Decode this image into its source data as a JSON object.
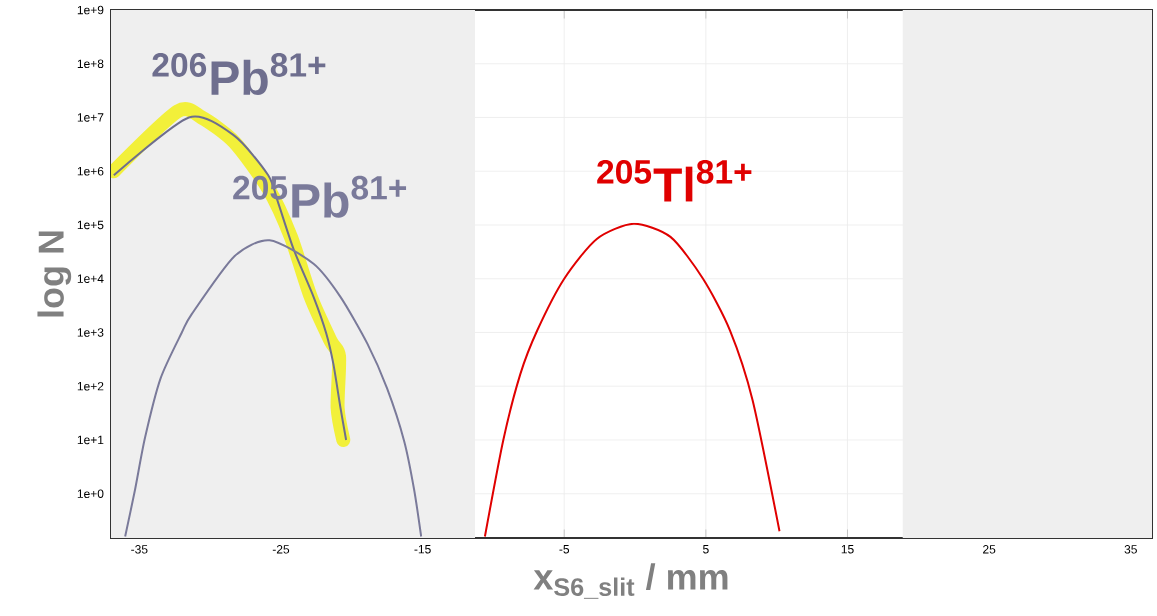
{
  "chart_data": {
    "type": "line",
    "xlabel": "x$_{S6_slit}$ / mm",
    "ylabel": "log N",
    "log": "y",
    "grid": true,
    "xlim": [
      -37,
      36.5
    ],
    "xticks": [
      -35,
      -25,
      -15,
      -5,
      5,
      15,
      25,
      35
    ],
    "ylim": [
      0.15,
      1000000000
    ],
    "yticks": [
      {
        "value": 1,
        "label": "1e+0"
      },
      {
        "value": 10,
        "label": "1e+1"
      },
      {
        "value": 100,
        "label": "1e+2"
      },
      {
        "value": 1000,
        "label": "1e+3"
      },
      {
        "value": 10000,
        "label": "1e+4"
      },
      {
        "value": 100000,
        "label": "1e+5"
      },
      {
        "value": 1000000,
        "label": "1e+6"
      },
      {
        "value": 10000000,
        "label": "1e+7"
      },
      {
        "value": 100000000,
        "label": "1e+8"
      },
      {
        "value": 1000000000,
        "label": "1e+9"
      }
    ],
    "bands": [
      {
        "axis": "x",
        "from": -37,
        "to": -11.3,
        "color": "#efefef"
      },
      {
        "axis": "x",
        "from": 18.9,
        "to": 36.5,
        "color": "#efefef"
      }
    ],
    "series": [
      {
        "color": "#f2f03a",
        "x": [
          -36.8,
          -32.3,
          -30.6,
          -28.3,
          -25.9,
          -24.3,
          -22.9,
          -21.5,
          -20.9,
          -21.0,
          -20.6
        ],
        "values": [
          1000000,
          13000000,
          10000000,
          3500000,
          480000,
          60000,
          4600,
          700,
          360,
          40,
          10
        ]
      },
      {
        "name": "$^{206}$Pb$^{81+}$",
        "color": "#6e6e8e",
        "x": [
          -36.8,
          -31.5,
          -28.3,
          -25.9,
          -25.2,
          -24.1,
          -22.7,
          -21.8,
          -21.3,
          -20.8,
          -20.4
        ],
        "values": [
          840000,
          10000000,
          4600000,
          840000,
          260000,
          35000,
          4600,
          960,
          260,
          40,
          10
        ]
      },
      {
        "name": "$^{205}$Pb$^{81+}$",
        "color": "#7a7a9a",
        "x": [
          -36.0,
          -35.3,
          -34.6,
          -33.5,
          -32.0,
          -31.3,
          -28.3,
          -25.8,
          -22.7,
          -20.8,
          -18.9,
          -17.5,
          -16.3,
          -15.6,
          -15.1
        ],
        "values": [
          0.16,
          1.2,
          11,
          140,
          1000,
          2200,
          26000,
          52000,
          19000,
          4600,
          620,
          90,
          9.5,
          1.2,
          0.16
        ]
      },
      {
        "name": "$^{205}$Tl$^{81+}$",
        "color": "#e00000",
        "x": [
          -10.6,
          -9.3,
          -8.1,
          -6.9,
          -5.0,
          -2.7,
          -0.1,
          2.5,
          4.8,
          6.7,
          8.3,
          10.2
        ],
        "values": [
          0.16,
          10,
          168,
          1100,
          10000,
          55000,
          105000,
          60000,
          10000,
          1100,
          55,
          0.2
        ]
      }
    ]
  }
}
